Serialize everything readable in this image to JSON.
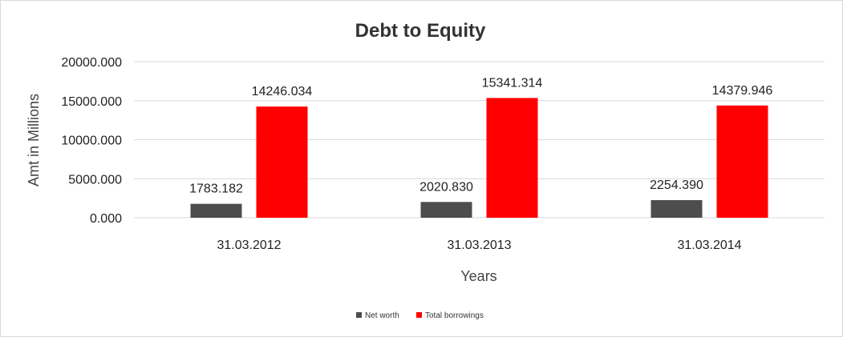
{
  "chart_data": {
    "type": "bar",
    "title": "Debt to Equity",
    "xlabel": "Years",
    "ylabel": "Amt in Millions",
    "categories": [
      "31.03.2012",
      "31.03.2013",
      "31.03.2014"
    ],
    "series": [
      {
        "name": "Net worth",
        "values": [
          1783.182,
          2020.83,
          2254.39
        ],
        "labels": [
          "1783.182",
          "2020.830",
          "2254.390"
        ],
        "color": "#4d4d4d"
      },
      {
        "name": "Total borrowings",
        "values": [
          14246.034,
          15341.314,
          14379.946
        ],
        "labels": [
          "14246.034",
          "15341.314",
          "14379.946"
        ],
        "color": "#ff0000"
      }
    ],
    "ylim": [
      0,
      20000
    ],
    "yticks": [
      0,
      5000,
      10000,
      15000,
      20000
    ],
    "ytick_labels": [
      "0.000",
      "5000.000",
      "10000.000",
      "15000.000",
      "20000.000"
    ],
    "grid": true,
    "legend_position": "bottom"
  }
}
